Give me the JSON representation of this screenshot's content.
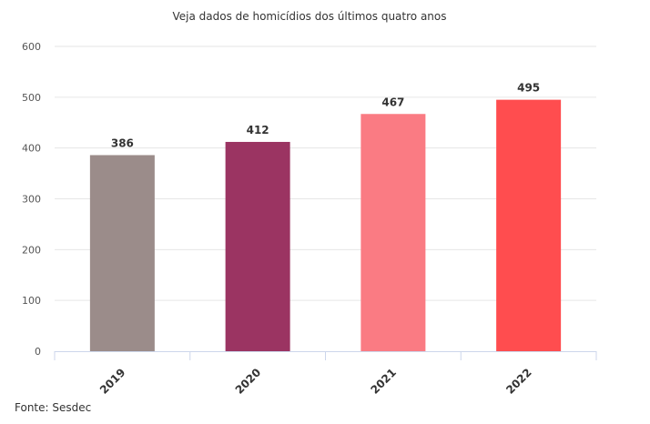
{
  "chart_data": {
    "type": "bar",
    "title": "Veja dados de homicídios dos últimos quatro anos",
    "categories": [
      "2019",
      "2020",
      "2021",
      "2022"
    ],
    "values": [
      386,
      412,
      467,
      495
    ],
    "data_labels": [
      "386",
      "412",
      "467",
      "495"
    ],
    "bar_colors": [
      "#9b8c8a",
      "#9b3462",
      "#fa7b83",
      "#ff4d4f"
    ],
    "ylim": [
      0,
      600
    ],
    "yticks": [
      "0",
      "100",
      "200",
      "300",
      "400",
      "500",
      "600"
    ],
    "ytick_values": [
      0,
      100,
      200,
      300,
      400,
      500,
      600
    ],
    "grid": true,
    "xlabel": "",
    "ylabel": ""
  },
  "source": "Fonte: Sesdec"
}
